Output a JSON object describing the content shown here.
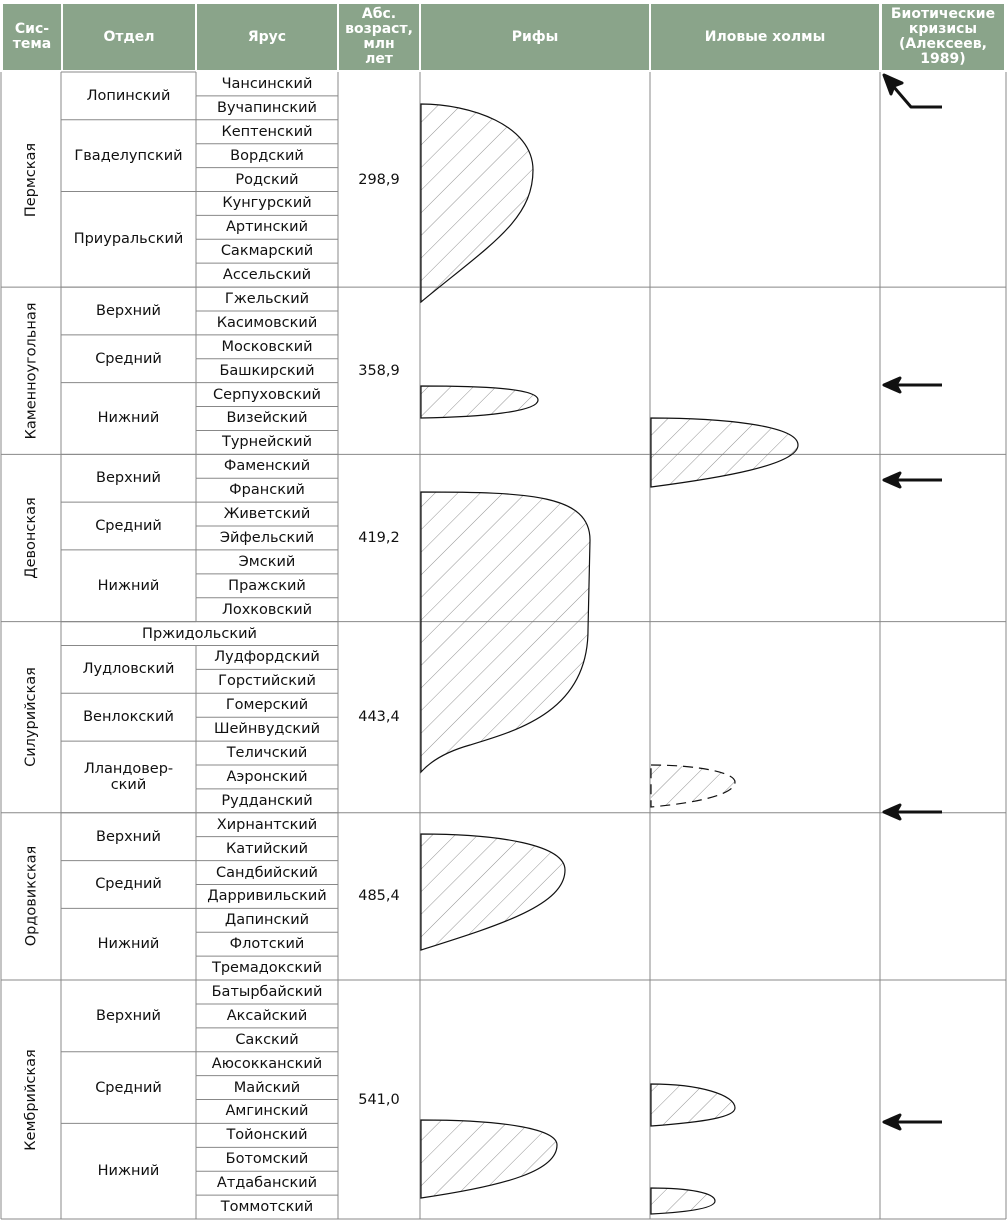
{
  "headers": {
    "system": [
      "Сис-",
      "тема"
    ],
    "department": "Отдел",
    "stage": "Ярус",
    "age": [
      "Абс.",
      "возраст,",
      "млн",
      "лет"
    ],
    "reefs": "Рифы",
    "mounds": "Иловые холмы",
    "crises": [
      "Биотические",
      "кризисы",
      "(Алексеев,",
      "1989)"
    ]
  },
  "systems": [
    {
      "name": "Пермская",
      "age": "298,9",
      "from": 0,
      "to": 9
    },
    {
      "name": "Каменноугольная",
      "age": "358,9",
      "from": 9,
      "to": 16
    },
    {
      "name": "Девонская",
      "age": "419,2",
      "from": 16,
      "to": 23
    },
    {
      "name": "Силурийская",
      "age": "443,4",
      "from": 23,
      "to": 31
    },
    {
      "name": "Ордовикская",
      "age": "485,4",
      "from": 31,
      "to": 38
    },
    {
      "name": "Кембрийская",
      "age": "541,0",
      "from": 38,
      "to": 48
    }
  ],
  "departments": [
    {
      "label": [
        "Лопинский"
      ],
      "from": 0,
      "to": 2
    },
    {
      "label": [
        "Гваделупский"
      ],
      "from": 2,
      "to": 5
    },
    {
      "label": [
        "Приуральский"
      ],
      "from": 5,
      "to": 9
    },
    {
      "label": [
        "Верхний"
      ],
      "from": 9,
      "to": 11
    },
    {
      "label": [
        "Средний"
      ],
      "from": 11,
      "to": 13
    },
    {
      "label": [
        "Нижний"
      ],
      "from": 13,
      "to": 16
    },
    {
      "label": [
        "Верхний"
      ],
      "from": 16,
      "to": 18
    },
    {
      "label": [
        "Средний"
      ],
      "from": 18,
      "to": 20
    },
    {
      "label": [
        "Нижний"
      ],
      "from": 20,
      "to": 23
    },
    {
      "label": [
        "Пржидольский"
      ],
      "from": 23,
      "to": 24,
      "span": true
    },
    {
      "label": [
        "Лудловский"
      ],
      "from": 24,
      "to": 26
    },
    {
      "label": [
        "Венлокский"
      ],
      "from": 26,
      "to": 28
    },
    {
      "label": [
        "Лландовер-",
        "ский"
      ],
      "from": 28,
      "to": 31
    },
    {
      "label": [
        "Верхний"
      ],
      "from": 31,
      "to": 33
    },
    {
      "label": [
        "Средний"
      ],
      "from": 33,
      "to": 35
    },
    {
      "label": [
        "Нижний"
      ],
      "from": 35,
      "to": 38
    },
    {
      "label": [
        "Верхний"
      ],
      "from": 38,
      "to": 41
    },
    {
      "label": [
        "Средний"
      ],
      "from": 41,
      "to": 44
    },
    {
      "label": [
        "Нижний"
      ],
      "from": 44,
      "to": 48
    }
  ],
  "stages": [
    "Чансинский",
    "Вучапинский",
    "Кептенский",
    "Вордский",
    "Родский",
    "Кунгурский",
    "Артинский",
    "Сакмарский",
    "Ассельский",
    "Гжельский",
    "Касимовский",
    "Московский",
    "Башкирский",
    "Серпуховский",
    "Визейский",
    "Турнейский",
    "Фаменский",
    "Франский",
    "Живетский",
    "Эйфельский",
    "Эмский",
    "Пражский",
    "Лохковский",
    "",
    "Лудфордский",
    "Горстийский",
    "Гомерский",
    "Шейнвудский",
    "Теличский",
    "Аэронский",
    "Рудданский",
    "Хирнантский",
    "Катийский",
    "Сандбийский",
    "Дарривильский",
    "Дапинский",
    "Флотский",
    "Тремадокский",
    "Батырбайский",
    "Аксайский",
    "Сакский",
    "Аюсокканский",
    "Майский",
    "Амгинский",
    "Тойонский",
    "Ботомский",
    "Атдабанский",
    "Томмотский"
  ],
  "crises": [
    {
      "stage": "Вучапинский",
      "type": "bent"
    },
    {
      "stage": "Серпуховский",
      "type": "straight"
    },
    {
      "stage": "Фаменский",
      "type": "straight"
    },
    {
      "stage": "Рудданский",
      "type": "straight"
    },
    {
      "stage": "Амгинский",
      "type": "straight"
    }
  ]
}
